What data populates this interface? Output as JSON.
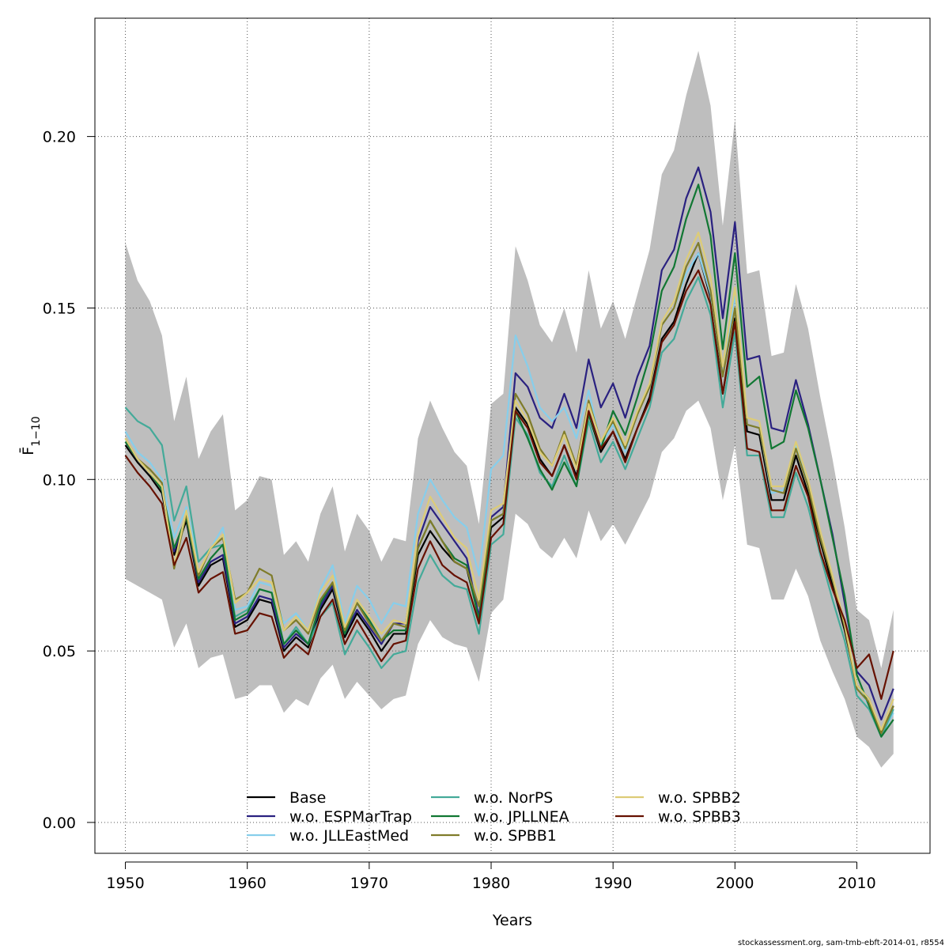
{
  "chart_data": {
    "type": "line",
    "xlabel": "Years",
    "ylabel": "F̄",
    "ylabel_subscript": "1−10",
    "xlim": [
      1947.5,
      2016
    ],
    "ylim": [
      -0.009,
      0.2345
    ],
    "x_ticks": [
      1950,
      1960,
      1970,
      1980,
      1990,
      2000,
      2010
    ],
    "x_tick_labels": [
      "1950",
      "1960",
      "1970",
      "1980",
      "1990",
      "2000",
      "2010"
    ],
    "y_ticks": [
      0.0,
      0.05,
      0.1,
      0.15,
      0.2
    ],
    "y_tick_labels": [
      "0.00",
      "0.05",
      "0.10",
      "0.15",
      "0.20"
    ],
    "grid": true,
    "legend_position": "bottom",
    "legend_columns": 3,
    "x": [
      1950,
      1951,
      1952,
      1953,
      1954,
      1955,
      1956,
      1957,
      1958,
      1959,
      1960,
      1961,
      1962,
      1963,
      1964,
      1965,
      1966,
      1967,
      1968,
      1969,
      1970,
      1971,
      1972,
      1973,
      1974,
      1975,
      1976,
      1977,
      1978,
      1979,
      1980,
      1981,
      1982,
      1983,
      1984,
      1985,
      1986,
      1987,
      1988,
      1989,
      1990,
      1991,
      1992,
      1993,
      1994,
      1995,
      1996,
      1997,
      1998,
      1999,
      2000,
      2001,
      2002,
      2003,
      2004,
      2005,
      2006,
      2007,
      2008,
      2009,
      2010,
      2011,
      2012,
      2013
    ],
    "band": {
      "color": "#bebebe",
      "upper": [
        0.169,
        0.158,
        0.152,
        0.142,
        0.117,
        0.13,
        0.106,
        0.114,
        0.119,
        0.091,
        0.094,
        0.101,
        0.1,
        0.078,
        0.082,
        0.076,
        0.09,
        0.098,
        0.079,
        0.09,
        0.085,
        0.076,
        0.083,
        0.082,
        0.112,
        0.123,
        0.115,
        0.108,
        0.104,
        0.087,
        0.122,
        0.125,
        0.168,
        0.158,
        0.145,
        0.14,
        0.15,
        0.137,
        0.161,
        0.144,
        0.152,
        0.141,
        0.154,
        0.167,
        0.189,
        0.196,
        0.212,
        0.225,
        0.209,
        0.174,
        0.205,
        0.16,
        0.161,
        0.136,
        0.137,
        0.157,
        0.144,
        0.124,
        0.106,
        0.086,
        0.062,
        0.059,
        0.045,
        0.062
      ],
      "lower": [
        0.071,
        0.069,
        0.067,
        0.065,
        0.051,
        0.058,
        0.045,
        0.048,
        0.049,
        0.036,
        0.037,
        0.04,
        0.04,
        0.032,
        0.036,
        0.034,
        0.042,
        0.046,
        0.036,
        0.041,
        0.037,
        0.033,
        0.036,
        0.037,
        0.052,
        0.059,
        0.054,
        0.052,
        0.051,
        0.041,
        0.061,
        0.065,
        0.09,
        0.087,
        0.08,
        0.077,
        0.083,
        0.077,
        0.091,
        0.082,
        0.087,
        0.081,
        0.088,
        0.095,
        0.108,
        0.112,
        0.12,
        0.123,
        0.115,
        0.094,
        0.11,
        0.081,
        0.08,
        0.065,
        0.065,
        0.074,
        0.066,
        0.053,
        0.044,
        0.036,
        0.025,
        0.022,
        0.016,
        0.02
      ]
    },
    "series": [
      {
        "name": "Base",
        "color": "#000000",
        "values": [
          0.11,
          0.105,
          0.101,
          0.096,
          0.078,
          0.088,
          0.069,
          0.075,
          0.077,
          0.057,
          0.059,
          0.065,
          0.064,
          0.05,
          0.054,
          0.051,
          0.062,
          0.068,
          0.054,
          0.061,
          0.056,
          0.05,
          0.055,
          0.055,
          0.078,
          0.085,
          0.08,
          0.076,
          0.074,
          0.06,
          0.086,
          0.089,
          0.121,
          0.116,
          0.106,
          0.101,
          0.11,
          0.101,
          0.119,
          0.108,
          0.114,
          0.106,
          0.115,
          0.124,
          0.141,
          0.146,
          0.157,
          0.166,
          0.153,
          0.125,
          0.147,
          0.114,
          0.113,
          0.094,
          0.094,
          0.107,
          0.096,
          0.082,
          0.069,
          0.056,
          0.04,
          0.036,
          0.026,
          0.034
        ]
      },
      {
        "name": "w.o. ESPMarTrap",
        "color": "#2a2180",
        "values": [
          0.111,
          0.106,
          0.102,
          0.097,
          0.079,
          0.089,
          0.07,
          0.076,
          0.078,
          0.058,
          0.06,
          0.066,
          0.065,
          0.051,
          0.055,
          0.052,
          0.063,
          0.069,
          0.055,
          0.062,
          0.057,
          0.052,
          0.058,
          0.058,
          0.082,
          0.092,
          0.087,
          0.082,
          0.077,
          0.06,
          0.089,
          0.092,
          0.131,
          0.127,
          0.118,
          0.115,
          0.125,
          0.115,
          0.135,
          0.121,
          0.128,
          0.118,
          0.13,
          0.139,
          0.161,
          0.167,
          0.182,
          0.191,
          0.178,
          0.147,
          0.175,
          0.135,
          0.136,
          0.115,
          0.114,
          0.129,
          0.116,
          0.1,
          0.084,
          0.064,
          0.044,
          0.04,
          0.03,
          0.039
        ]
      },
      {
        "name": "w.o. JLLEastMed",
        "color": "#87ceeb",
        "values": [
          0.114,
          0.108,
          0.105,
          0.1,
          0.083,
          0.092,
          0.076,
          0.08,
          0.086,
          0.062,
          0.063,
          0.07,
          0.069,
          0.058,
          0.061,
          0.056,
          0.068,
          0.075,
          0.058,
          0.069,
          0.065,
          0.058,
          0.064,
          0.063,
          0.09,
          0.1,
          0.094,
          0.089,
          0.086,
          0.072,
          0.103,
          0.107,
          0.142,
          0.133,
          0.121,
          0.117,
          0.121,
          0.112,
          0.126,
          0.11,
          0.116,
          0.108,
          0.12,
          0.128,
          0.145,
          0.15,
          0.16,
          0.166,
          0.154,
          0.13,
          0.154,
          0.116,
          0.115,
          0.096,
          0.097,
          0.11,
          0.098,
          0.084,
          0.071,
          0.058,
          0.04,
          0.034,
          0.025,
          0.032
        ]
      },
      {
        "name": "w.o. NorPS",
        "color": "#44aa99",
        "values": [
          0.121,
          0.117,
          0.115,
          0.11,
          0.088,
          0.098,
          0.076,
          0.08,
          0.081,
          0.06,
          0.062,
          0.068,
          0.067,
          0.052,
          0.057,
          0.052,
          0.06,
          0.064,
          0.049,
          0.056,
          0.051,
          0.045,
          0.049,
          0.05,
          0.07,
          0.078,
          0.072,
          0.069,
          0.068,
          0.055,
          0.081,
          0.084,
          0.118,
          0.113,
          0.102,
          0.098,
          0.107,
          0.098,
          0.117,
          0.105,
          0.111,
          0.103,
          0.112,
          0.121,
          0.137,
          0.141,
          0.152,
          0.159,
          0.148,
          0.121,
          0.143,
          0.107,
          0.107,
          0.089,
          0.089,
          0.102,
          0.092,
          0.078,
          0.065,
          0.053,
          0.037,
          0.033,
          0.025,
          0.033
        ]
      },
      {
        "name": "w.o. JPLLNEA",
        "color": "#117733",
        "values": [
          0.111,
          0.106,
          0.102,
          0.097,
          0.08,
          0.089,
          0.071,
          0.077,
          0.081,
          0.059,
          0.061,
          0.068,
          0.067,
          0.052,
          0.056,
          0.052,
          0.064,
          0.07,
          0.055,
          0.064,
          0.059,
          0.053,
          0.056,
          0.056,
          0.08,
          0.088,
          0.082,
          0.077,
          0.075,
          0.059,
          0.088,
          0.09,
          0.12,
          0.112,
          0.103,
          0.097,
          0.105,
          0.098,
          0.119,
          0.109,
          0.12,
          0.113,
          0.124,
          0.136,
          0.155,
          0.162,
          0.176,
          0.186,
          0.171,
          0.138,
          0.166,
          0.127,
          0.13,
          0.109,
          0.111,
          0.126,
          0.115,
          0.1,
          0.083,
          0.066,
          0.043,
          0.034,
          0.025,
          0.03
        ]
      },
      {
        "name": "w.o. SPBB1",
        "color": "#7f7c2a",
        "values": [
          0.112,
          0.106,
          0.103,
          0.099,
          0.074,
          0.09,
          0.072,
          0.08,
          0.083,
          0.065,
          0.067,
          0.074,
          0.072,
          0.056,
          0.059,
          0.055,
          0.065,
          0.07,
          0.056,
          0.064,
          0.058,
          0.053,
          0.058,
          0.057,
          0.08,
          0.088,
          0.082,
          0.076,
          0.074,
          0.063,
          0.088,
          0.09,
          0.125,
          0.119,
          0.109,
          0.104,
          0.114,
          0.104,
          0.123,
          0.111,
          0.117,
          0.109,
          0.119,
          0.127,
          0.145,
          0.15,
          0.162,
          0.169,
          0.155,
          0.13,
          0.15,
          0.116,
          0.115,
          0.097,
          0.096,
          0.109,
          0.098,
          0.083,
          0.071,
          0.057,
          0.039,
          0.035,
          0.026,
          0.034
        ]
      },
      {
        "name": "w.o. SPBB2",
        "color": "#ddcc77",
        "values": [
          0.112,
          0.106,
          0.102,
          0.098,
          0.075,
          0.091,
          0.073,
          0.08,
          0.084,
          0.064,
          0.067,
          0.071,
          0.07,
          0.056,
          0.06,
          0.056,
          0.067,
          0.072,
          0.057,
          0.065,
          0.06,
          0.055,
          0.059,
          0.058,
          0.084,
          0.095,
          0.089,
          0.083,
          0.08,
          0.065,
          0.091,
          0.093,
          0.123,
          0.117,
          0.108,
          0.104,
          0.113,
          0.103,
          0.122,
          0.111,
          0.118,
          0.11,
          0.12,
          0.128,
          0.146,
          0.152,
          0.164,
          0.172,
          0.159,
          0.133,
          0.156,
          0.118,
          0.117,
          0.098,
          0.098,
          0.111,
          0.1,
          0.085,
          0.072,
          0.058,
          0.04,
          0.036,
          0.027,
          0.036
        ]
      },
      {
        "name": "w.o. SPBB3",
        "color": "#661100",
        "values": [
          0.107,
          0.102,
          0.098,
          0.093,
          0.075,
          0.083,
          0.067,
          0.071,
          0.073,
          0.055,
          0.056,
          0.061,
          0.06,
          0.048,
          0.052,
          0.049,
          0.06,
          0.065,
          0.052,
          0.059,
          0.053,
          0.047,
          0.052,
          0.053,
          0.074,
          0.082,
          0.075,
          0.072,
          0.07,
          0.058,
          0.083,
          0.087,
          0.12,
          0.115,
          0.105,
          0.101,
          0.11,
          0.1,
          0.12,
          0.109,
          0.114,
          0.105,
          0.115,
          0.123,
          0.14,
          0.145,
          0.155,
          0.161,
          0.151,
          0.125,
          0.146,
          0.109,
          0.108,
          0.091,
          0.091,
          0.104,
          0.095,
          0.079,
          0.068,
          0.059,
          0.045,
          0.049,
          0.036,
          0.05
        ]
      }
    ]
  },
  "footer": {
    "note": "stockassessment.org, sam-tmb-ebft-2014-01, r8554"
  }
}
